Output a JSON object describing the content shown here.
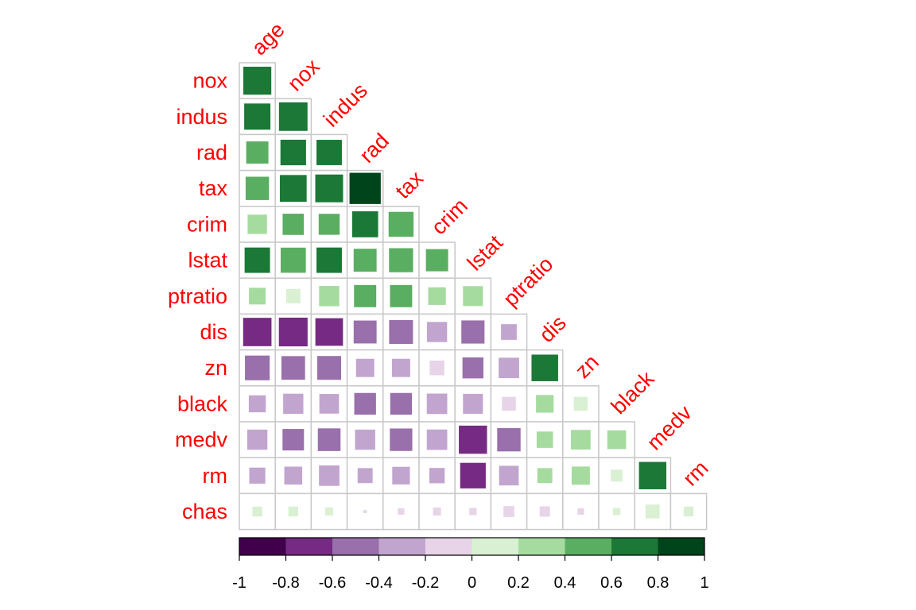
{
  "chart_data": {
    "type": "heatmap",
    "variables": [
      "age",
      "nox",
      "indus",
      "rad",
      "tax",
      "crim",
      "lstat",
      "ptratio",
      "dis",
      "zn",
      "black",
      "medv",
      "rm"
    ],
    "row_labels": [
      "nox",
      "indus",
      "rad",
      "tax",
      "crim",
      "lstat",
      "ptratio",
      "dis",
      "zn",
      "black",
      "medv",
      "rm",
      "chas"
    ],
    "column_labels": [
      "age",
      "nox",
      "indus",
      "rad",
      "tax",
      "crim",
      "lstat",
      "ptratio",
      "dis",
      "zn",
      "black",
      "medv",
      "rm"
    ],
    "matrix_shape": "lower-triangle",
    "cell_glyph": "square sized by |r|",
    "values": [
      [
        0.73
      ],
      [
        0.64,
        0.76
      ],
      [
        0.46,
        0.61,
        0.6
      ],
      [
        0.51,
        0.67,
        0.72,
        0.91
      ],
      [
        0.35,
        0.42,
        0.41,
        0.63,
        0.58
      ],
      [
        0.6,
        0.59,
        0.6,
        0.49,
        0.54,
        0.46
      ],
      [
        0.26,
        0.19,
        0.38,
        0.46,
        0.46,
        0.29,
        0.37
      ],
      [
        -0.75,
        -0.77,
        -0.71,
        -0.49,
        -0.53,
        -0.38,
        -0.5,
        -0.23
      ],
      [
        -0.57,
        -0.52,
        -0.53,
        -0.31,
        -0.31,
        -0.2,
        -0.41,
        -0.39,
        0.66
      ],
      [
        -0.27,
        -0.38,
        -0.36,
        -0.44,
        -0.44,
        -0.39,
        -0.37,
        -0.18,
        0.29,
        0.18
      ],
      [
        -0.38,
        -0.43,
        -0.48,
        -0.38,
        -0.47,
        -0.39,
        -0.74,
        -0.51,
        0.25,
        0.36,
        0.33
      ],
      [
        -0.24,
        -0.3,
        -0.39,
        -0.21,
        -0.29,
        -0.22,
        -0.61,
        -0.36,
        0.21,
        0.31,
        0.13,
        0.7
      ],
      [
        0.09,
        0.09,
        0.06,
        -0.01,
        -0.04,
        -0.06,
        -0.05,
        -0.11,
        -0.1,
        -0.04,
        0.05,
        0.18,
        0.09
      ]
    ],
    "colorbar": {
      "ticks": [
        "-1",
        "-0.8",
        "-0.6",
        "-0.4",
        "-0.2",
        "0",
        "0.2",
        "0.4",
        "0.6",
        "0.8",
        "1"
      ],
      "range": [
        -1,
        1
      ],
      "bins": [
        {
          "from": -1.0,
          "to": -0.8,
          "color": "#40004b"
        },
        {
          "from": -0.8,
          "to": -0.6,
          "color": "#762a83"
        },
        {
          "from": -0.6,
          "to": -0.4,
          "color": "#9970ab"
        },
        {
          "from": -0.4,
          "to": -0.2,
          "color": "#c2a5cf"
        },
        {
          "from": -0.2,
          "to": 0.0,
          "color": "#e7d4e8"
        },
        {
          "from": 0.0,
          "to": 0.2,
          "color": "#d9f0d3"
        },
        {
          "from": 0.2,
          "to": 0.4,
          "color": "#a6dba0"
        },
        {
          "from": 0.4,
          "to": 0.6,
          "color": "#5aae61"
        },
        {
          "from": 0.6,
          "to": 0.8,
          "color": "#1b7837"
        },
        {
          "from": 0.8,
          "to": 1.0,
          "color": "#00441b"
        }
      ]
    },
    "label_color": "#ff0000",
    "grid_color": "#c8c8c8",
    "legend_position": "bottom"
  }
}
